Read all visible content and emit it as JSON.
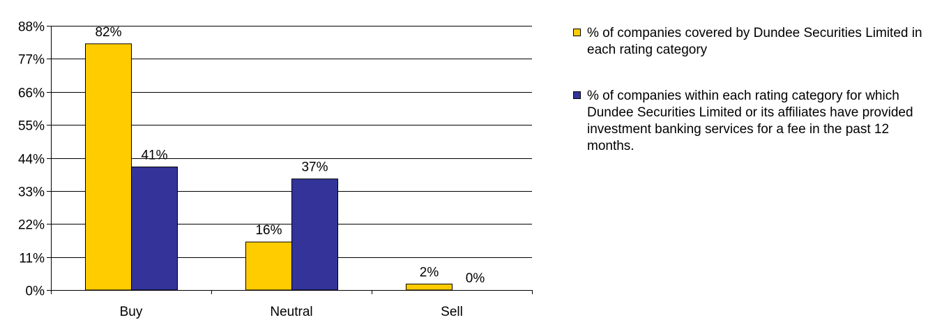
{
  "chart_data": {
    "type": "bar",
    "categories": [
      "Buy",
      "Neutral",
      "Sell"
    ],
    "series": [
      {
        "name": "% of companies covered by Dundee Securities Limited in each rating category",
        "values": [
          82,
          16,
          2
        ],
        "color": "#FFCC00",
        "labels": [
          "82%",
          "16%",
          "2%"
        ]
      },
      {
        "name": "% of companies within each rating category for which Dundee Securities Limited or its affiliates have provided investment banking services for a fee in the past 12 months.",
        "values": [
          41,
          37,
          0
        ],
        "color": "#333399",
        "labels": [
          "41%",
          "37%",
          "0%"
        ]
      }
    ],
    "yticks": [
      "0%",
      "11%",
      "22%",
      "33%",
      "44%",
      "55%",
      "66%",
      "77%",
      "88%"
    ],
    "ylim": [
      0,
      88
    ],
    "grid": true,
    "legend_position": "right"
  }
}
